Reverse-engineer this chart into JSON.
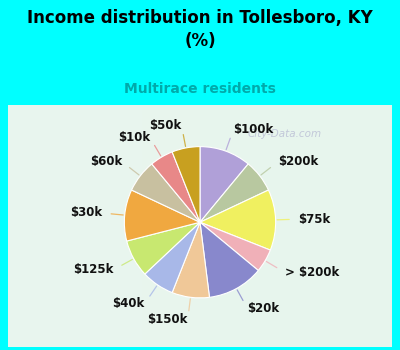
{
  "title": "Income distribution in Tollesboro, KY\n(%)",
  "subtitle": "Multirace residents",
  "title_color": "#000000",
  "subtitle_color": "#00aaaa",
  "bg_cyan": "#00ffff",
  "watermark": "City-Data.com",
  "labels": [
    "$100k",
    "$200k",
    "$75k",
    "> $200k",
    "$20k",
    "$150k",
    "$40k",
    "$125k",
    "$30k",
    "$60k",
    "$10k",
    "$50k"
  ],
  "values": [
    11,
    7,
    13,
    5,
    12,
    8,
    7,
    8,
    11,
    7,
    5,
    6
  ],
  "colors": [
    "#b0a0d8",
    "#b8c8a0",
    "#f0f060",
    "#f0b0b8",
    "#8888cc",
    "#f0c898",
    "#a8b8e8",
    "#c8e870",
    "#f0a840",
    "#c8c0a0",
    "#e88888",
    "#c8a020"
  ],
  "label_fontsize": 8.5,
  "figsize": [
    4.0,
    3.5
  ],
  "dpi": 100
}
